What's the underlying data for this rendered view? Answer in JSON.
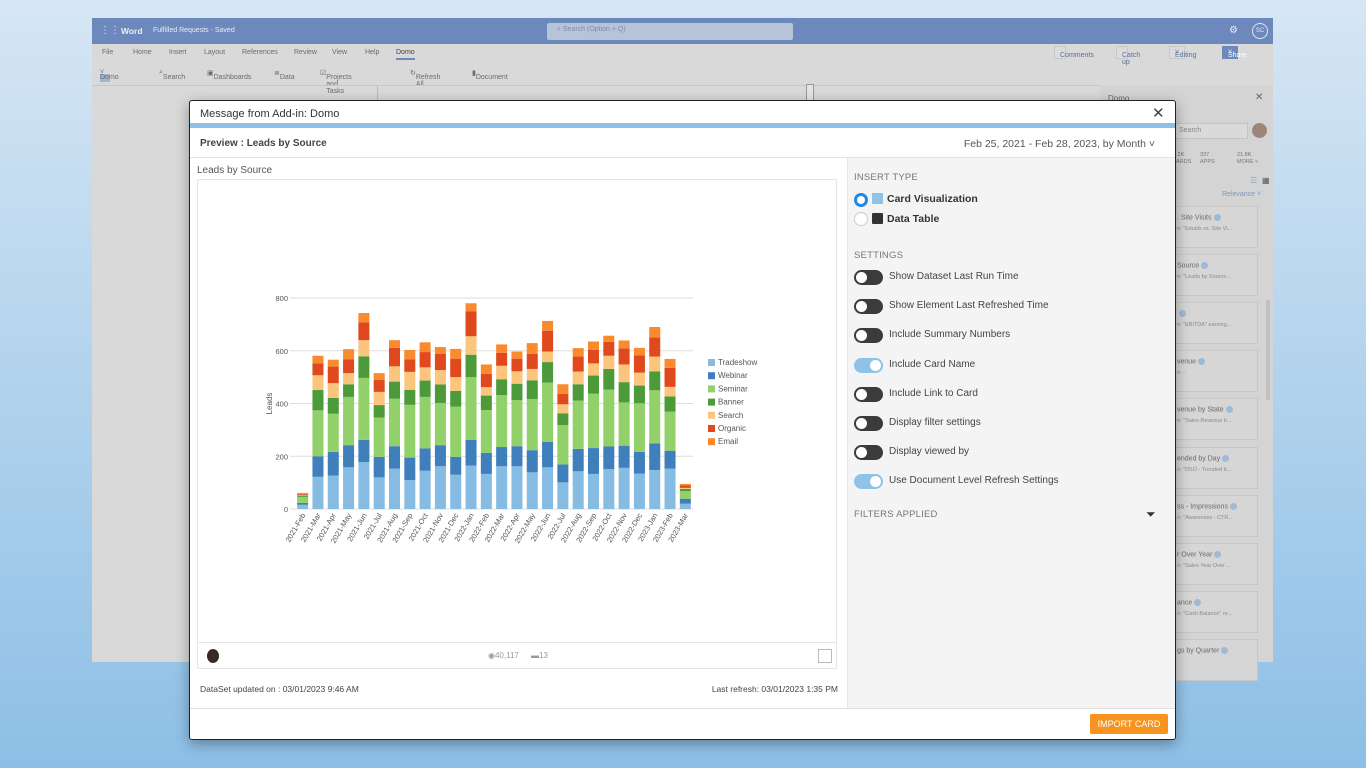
{
  "word": {
    "app": "Word",
    "doc": "Fulfilled Requests - Saved",
    "search_placeholder": "Search (Option + Q)",
    "user_initials": "SC",
    "tabs": [
      "File",
      "Home",
      "Insert",
      "Layout",
      "References",
      "Review",
      "View",
      "Help",
      "Domo"
    ],
    "active_tab": "Domo",
    "ribbon": [
      "Domo",
      "Search",
      "Dashboards",
      "Data",
      "Projects and Tasks",
      "Refresh All",
      "Document"
    ],
    "actions": [
      "Comments",
      "Catch up",
      "Editing",
      "Share"
    ]
  },
  "sidebar": {
    "title": "Domo",
    "search_placeholder": "Search",
    "stats": [
      {
        "count": ".2K",
        "label": "ARDS"
      },
      {
        "count": "337",
        "label": "APPS"
      },
      {
        "count": "21.8K",
        "label": "MORE"
      }
    ],
    "sort": "Relevance",
    "cards": [
      {
        "title": ". Site Visits",
        "sub": "n: \"Emails vs. Site Vi..."
      },
      {
        "title": "Source",
        "sub": "n: \"Leads by Source..."
      },
      {
        "title": "",
        "sub": "n: \"EBITDA\" earning..."
      },
      {
        "title": "venue",
        "sub": "n: -"
      },
      {
        "title": "venue by State",
        "sub": "n: \"Sales Revenue b..."
      },
      {
        "title": "ended by Day",
        "sub": "n: \"DSO - Trended b..."
      },
      {
        "title": "ss - Impressions",
        "sub": "n: \"Awareness - CTR..."
      },
      {
        "title": "r Over Year",
        "sub": "n: \"Sales Year Over ..."
      },
      {
        "title": "ance",
        "sub": "n: \"Cash Balance\" re..."
      },
      {
        "title": "gs by Quarter",
        "sub": ""
      }
    ]
  },
  "modal": {
    "title": "Message from Add-in: Domo",
    "preview": "Preview : Leads by Source",
    "date_range": "Feb 25, 2021 - Feb 28, 2023, by Month",
    "card_title": "Leads by Source",
    "views": "40,117",
    "comments": "13",
    "dataset_updated": "DataSet updated on : 03/01/2023 9:46 AM",
    "last_refresh": "Last refresh: 03/01/2023 1:35 PM",
    "import_label": "IMPORT CARD",
    "insert_type_label": "INSERT TYPE",
    "insert_types": [
      {
        "label": "Card Visualization",
        "selected": true
      },
      {
        "label": "Data Table",
        "selected": false
      }
    ],
    "settings_label": "SETTINGS",
    "settings": [
      {
        "label": "Show Dataset Last Run Time",
        "on": false
      },
      {
        "label": "Show Element Last Refreshed Time",
        "on": false
      },
      {
        "label": "Include Summary Numbers",
        "on": false
      },
      {
        "label": "Include Card Name",
        "on": true
      },
      {
        "label": "Include Link to Card",
        "on": false
      },
      {
        "label": "Display filter settings",
        "on": false
      },
      {
        "label": "Display viewed by",
        "on": false
      },
      {
        "label": "Use Document Level Refresh Settings",
        "on": true
      }
    ],
    "filters_label": "FILTERS APPLIED"
  },
  "chart_data": {
    "type": "bar",
    "stacked": true,
    "ylabel": "Leads",
    "ylim": [
      0,
      800
    ],
    "yticks": [
      0,
      200,
      400,
      600,
      800
    ],
    "grid": true,
    "legend": "right",
    "categories": [
      "2021-Feb",
      "2021-Mar",
      "2021-Apr",
      "2021-May",
      "2021-Jun",
      "2021-Jul",
      "2021-Aug",
      "2021-Sep",
      "2021-Oct",
      "2021-Nov",
      "2021-Dec",
      "2022-Jan",
      "2022-Feb",
      "2022-Mar",
      "2022-Apr",
      "2022-May",
      "2022-Jun",
      "2022-Jul",
      "2022-Aug",
      "2022-Sep",
      "2022-Oct",
      "2022-Nov",
      "2022-Dec",
      "2023-Jan",
      "2023-Feb",
      "2023-Mar"
    ],
    "series": [
      {
        "name": "Tradeshow",
        "color": "#86bce4",
        "values": [
          16,
          122,
          127,
          158,
          178,
          120,
          153,
          110,
          145,
          162,
          130,
          165,
          133,
          162,
          162,
          139,
          158,
          101,
          143,
          133,
          151,
          156,
          134,
          148,
          153,
          20
        ]
      },
      {
        "name": "Webinar",
        "color": "#3f7fbb",
        "values": [
          7,
          78,
          89,
          84,
          84,
          78,
          85,
          85,
          85,
          80,
          68,
          97,
          80,
          73,
          76,
          84,
          96,
          68,
          85,
          98,
          86,
          84,
          83,
          101,
          68,
          19
        ]
      },
      {
        "name": "Seminar",
        "color": "#92d06a",
        "values": [
          23,
          174,
          145,
          183,
          235,
          149,
          180,
          200,
          195,
          160,
          190,
          238,
          162,
          197,
          175,
          194,
          225,
          149,
          183,
          206,
          216,
          164,
          184,
          201,
          148,
          29
        ]
      },
      {
        "name": "Banner",
        "color": "#4c9a3a",
        "values": [
          5,
          77,
          60,
          48,
          82,
          47,
          65,
          57,
          62,
          70,
          60,
          85,
          55,
          60,
          62,
          71,
          78,
          45,
          62,
          69,
          78,
          77,
          67,
          72,
          58,
          8
        ]
      },
      {
        "name": "Search",
        "color": "#fcc57e",
        "values": [
          3,
          56,
          56,
          42,
          61,
          50,
          58,
          68,
          50,
          55,
          52,
          70,
          32,
          51,
          47,
          43,
          40,
          34,
          48,
          46,
          50,
          67,
          49,
          56,
          36,
          4
        ]
      },
      {
        "name": "Organic",
        "color": "#e0491d",
        "values": [
          4,
          45,
          63,
          53,
          68,
          45,
          70,
          47,
          58,
          62,
          70,
          95,
          50,
          49,
          48,
          57,
          79,
          40,
          57,
          52,
          53,
          61,
          66,
          72,
          72,
          9
        ]
      },
      {
        "name": "Email",
        "color": "#f98a2d",
        "values": [
          3,
          29,
          26,
          38,
          35,
          26,
          29,
          36,
          37,
          25,
          37,
          30,
          36,
          32,
          27,
          41,
          37,
          36,
          32,
          31,
          23,
          30,
          28,
          40,
          34,
          6
        ]
      }
    ]
  }
}
